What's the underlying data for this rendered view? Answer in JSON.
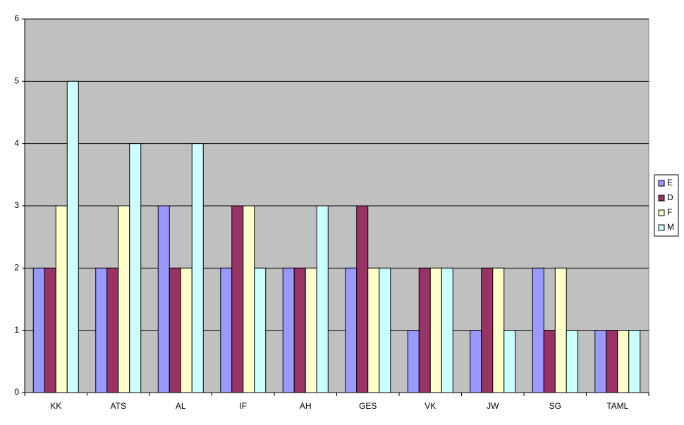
{
  "chart_data": {
    "type": "bar",
    "categories": [
      "KK",
      "ATS",
      "AL",
      "IF",
      "AH",
      "GES",
      "VK",
      "JW",
      "SG",
      "TAML"
    ],
    "series": [
      {
        "name": "E",
        "color": "#9999ff",
        "values": [
          2,
          2,
          3,
          2,
          2,
          2,
          1,
          1,
          2,
          1
        ]
      },
      {
        "name": "D",
        "color": "#993366",
        "values": [
          2,
          2,
          2,
          3,
          2,
          3,
          2,
          2,
          1,
          1
        ]
      },
      {
        "name": "F",
        "color": "#ffffcc",
        "values": [
          3,
          3,
          2,
          3,
          2,
          2,
          2,
          2,
          2,
          1
        ]
      },
      {
        "name": "M",
        "color": "#ccffff",
        "values": [
          5,
          4,
          4,
          2,
          3,
          2,
          2,
          1,
          1,
          1
        ]
      }
    ],
    "ylim": [
      0,
      6
    ],
    "yticks": [
      0,
      1,
      2,
      3,
      4,
      5,
      6
    ],
    "grid": true,
    "legend": "right",
    "plot_background": "#c0c0c0"
  }
}
